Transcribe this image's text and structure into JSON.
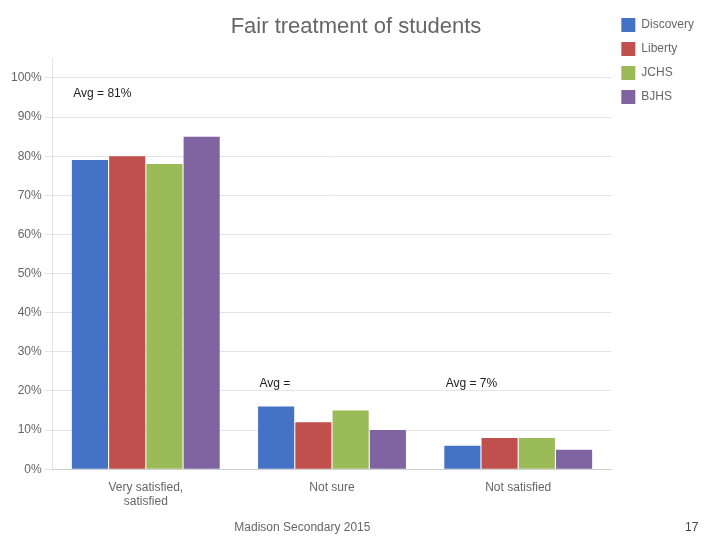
{
  "chart_data": {
    "type": "bar",
    "title": "Fair treatment of students",
    "categories": [
      "Very satisfied,\nsatisfied",
      "Not sure",
      "Not satisfied"
    ],
    "series": [
      {
        "name": "Discovery",
        "color": "#4472C4",
        "values": [
          0.79,
          0.16,
          0.06
        ]
      },
      {
        "name": "Liberty",
        "color": "#C0504D",
        "values": [
          0.8,
          0.12,
          0.08
        ]
      },
      {
        "name": "JCHS",
        "color": "#9BBB59",
        "values": [
          0.78,
          0.15,
          0.08
        ]
      },
      {
        "name": "BJHS",
        "color": "#8064A2",
        "values": [
          0.85,
          0.1,
          0.05
        ]
      }
    ],
    "annotations": [
      {
        "text": "Avg = 81%",
        "category": "Very satisfied,\nsatisfied",
        "y": 0.975
      },
      {
        "text": "Avg =",
        "category": "Not sure",
        "y": 0.235
      },
      {
        "text": "Avg = 7%",
        "category": "Not satisfied",
        "y": 0.235
      }
    ],
    "ylim": [
      0,
      1.05
    ],
    "yticks": [
      {
        "value": 0,
        "label": "0%"
      },
      {
        "value": 0.1,
        "label": "10%"
      },
      {
        "value": 0.2,
        "label": "20%"
      },
      {
        "value": 0.3,
        "label": "30%"
      },
      {
        "value": 0.4,
        "label": "40%"
      },
      {
        "value": 0.5,
        "label": "50%"
      },
      {
        "value": 0.6,
        "label": "60%"
      },
      {
        "value": 0.7,
        "label": "70%"
      },
      {
        "value": 0.8,
        "label": "80%"
      },
      {
        "value": 0.9,
        "label": "90%"
      },
      {
        "value": 1.0,
        "label": "100%"
      }
    ],
    "grid": true,
    "legend": "right",
    "footer_left": "Madison Secondary 2015",
    "footer_right": "17"
  }
}
